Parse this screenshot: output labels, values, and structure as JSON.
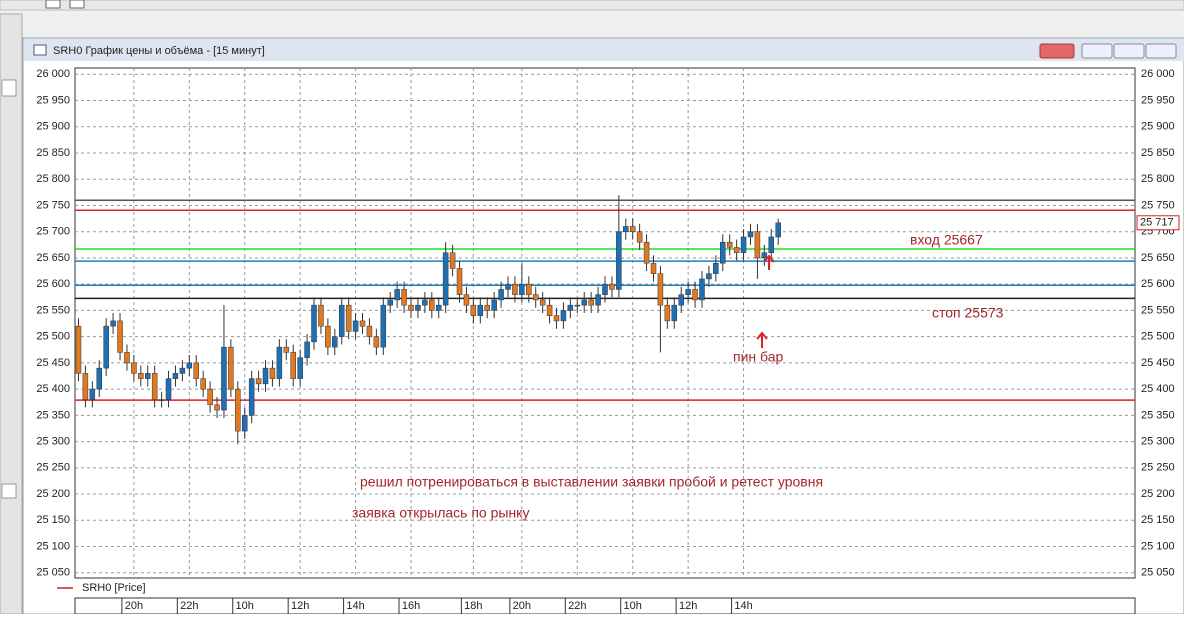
{
  "window": {
    "title": "SRH0 График цены и объёма - [15 минут]"
  },
  "chart_data": {
    "type": "candlestick",
    "series": [
      {
        "name": "SRH0 [Price]",
        "color": "#d42020",
        "up_color": "#1f6fb5",
        "down_color": "#e07a22",
        "open": [
          25520,
          25430,
          25380,
          25400,
          25440,
          25520,
          25530,
          25470,
          25450,
          25430,
          25420,
          25430,
          25380,
          25380,
          25420,
          25430,
          25440,
          25450,
          25420,
          25400,
          25370,
          25360,
          25480,
          25400,
          25320,
          25350,
          25420,
          25410,
          25440,
          25420,
          25480,
          25470,
          25420,
          25460,
          25490,
          25560,
          25520,
          25480,
          25500,
          25560,
          25510,
          25530,
          25520,
          25500,
          25480,
          25560,
          25570,
          25590,
          25560,
          25550,
          25560,
          25570,
          25550,
          25560,
          25660,
          25630,
          25580,
          25560,
          25540,
          25560,
          25550,
          25570,
          25590,
          25600,
          25580,
          25600,
          25580,
          25570,
          25560,
          25540,
          25530,
          25550,
          25560,
          25560,
          25570,
          25560,
          25580,
          25600,
          25590,
          25700,
          25710,
          25700,
          25680,
          25640,
          25620,
          25560,
          25530,
          25560,
          25580,
          25590,
          25570,
          25610,
          25620,
          25640,
          25680,
          25670,
          25660,
          25690,
          25700,
          25650,
          25660,
          25690
        ],
        "high": [
          25535,
          25445,
          25415,
          25455,
          25535,
          25545,
          25545,
          25485,
          25465,
          25445,
          25445,
          25445,
          25395,
          25435,
          25445,
          25455,
          25465,
          25465,
          25435,
          25415,
          25385,
          25560,
          25495,
          25415,
          25365,
          25435,
          25435,
          25455,
          25455,
          25495,
          25495,
          25485,
          25475,
          25505,
          25575,
          25575,
          25535,
          25515,
          25575,
          25575,
          25545,
          25545,
          25535,
          25515,
          25575,
          25585,
          25605,
          25605,
          25575,
          25575,
          25585,
          25585,
          25575,
          25680,
          25675,
          25645,
          25595,
          25575,
          25575,
          25575,
          25585,
          25605,
          25615,
          25615,
          25640,
          25615,
          25595,
          25585,
          25575,
          25555,
          25565,
          25575,
          25575,
          25585,
          25585,
          25595,
          25615,
          25615,
          25770,
          25725,
          25725,
          25715,
          25695,
          25655,
          25635,
          25575,
          25575,
          25595,
          25605,
          25605,
          25625,
          25635,
          25655,
          25695,
          25695,
          25685,
          25705,
          25715,
          25715,
          25675,
          25705,
          25725
        ],
        "low": [
          25415,
          25365,
          25365,
          25385,
          25425,
          25505,
          25455,
          25435,
          25415,
          25405,
          25405,
          25365,
          25365,
          25365,
          25405,
          25415,
          25425,
          25405,
          25385,
          25355,
          25345,
          25345,
          25385,
          25295,
          25305,
          25335,
          25395,
          25395,
          25405,
          25405,
          25455,
          25405,
          25405,
          25445,
          25475,
          25505,
          25465,
          25465,
          25485,
          25495,
          25495,
          25505,
          25485,
          25465,
          25465,
          25545,
          25555,
          25545,
          25535,
          25535,
          25545,
          25535,
          25535,
          25545,
          25615,
          25565,
          25545,
          25525,
          25525,
          25535,
          25535,
          25555,
          25575,
          25565,
          25565,
          25565,
          25555,
          25545,
          25525,
          25515,
          25515,
          25535,
          25545,
          25545,
          25545,
          25545,
          25565,
          25575,
          25575,
          25685,
          25685,
          25665,
          25625,
          25605,
          25470,
          25515,
          25515,
          25545,
          25565,
          25555,
          25555,
          25595,
          25605,
          25625,
          25655,
          25645,
          25645,
          25675,
          25610,
          25635,
          25645,
          25675
        ],
        "close": [
          25430,
          25380,
          25400,
          25440,
          25520,
          25530,
          25470,
          25450,
          25430,
          25420,
          25430,
          25380,
          25380,
          25420,
          25430,
          25440,
          25450,
          25420,
          25400,
          25370,
          25360,
          25480,
          25400,
          25320,
          25350,
          25420,
          25410,
          25440,
          25420,
          25480,
          25470,
          25420,
          25460,
          25490,
          25560,
          25520,
          25480,
          25500,
          25560,
          25510,
          25530,
          25520,
          25500,
          25480,
          25560,
          25570,
          25590,
          25560,
          25550,
          25560,
          25570,
          25550,
          25560,
          25660,
          25630,
          25580,
          25560,
          25540,
          25560,
          25550,
          25570,
          25590,
          25600,
          25580,
          25600,
          25580,
          25570,
          25560,
          25540,
          25530,
          25550,
          25560,
          25560,
          25570,
          25560,
          25580,
          25600,
          25590,
          25700,
          25710,
          25700,
          25680,
          25640,
          25620,
          25560,
          25530,
          25560,
          25580,
          25590,
          25570,
          25610,
          25620,
          25640,
          25680,
          25670,
          25660,
          25690,
          25700,
          25650,
          25660,
          25690,
          25717
        ]
      }
    ],
    "xlim": [
      -0.5,
      152.5
    ],
    "xticks": [
      {
        "value": 8,
        "label": "20h"
      },
      {
        "value": 16,
        "label": "22h"
      },
      {
        "value": 24,
        "label": "10h"
      },
      {
        "value": 32,
        "label": "12h"
      },
      {
        "value": 40,
        "label": "14h"
      },
      {
        "value": 48,
        "label": "16h"
      },
      {
        "value": 57,
        "label": "18h"
      },
      {
        "value": 64,
        "label": "20h"
      },
      {
        "value": 72,
        "label": "22h"
      },
      {
        "value": 80,
        "label": "10h"
      },
      {
        "value": 88,
        "label": "12h"
      },
      {
        "value": 96,
        "label": "14h"
      }
    ],
    "ylim": [
      25040,
      26012
    ],
    "yticks": [
      {
        "value": 26000,
        "label": "26 000"
      },
      {
        "value": 25950,
        "label": "25 950"
      },
      {
        "value": 25900,
        "label": "25 900"
      },
      {
        "value": 25850,
        "label": "25 850"
      },
      {
        "value": 25800,
        "label": "25 800"
      },
      {
        "value": 25750,
        "label": "25 750"
      },
      {
        "value": 25700,
        "label": "25 700"
      },
      {
        "value": 25650,
        "label": "25 650"
      },
      {
        "value": 25600,
        "label": "25 600"
      },
      {
        "value": 25550,
        "label": "25 550"
      },
      {
        "value": 25500,
        "label": "25 500"
      },
      {
        "value": 25450,
        "label": "25 450"
      },
      {
        "value": 25400,
        "label": "25 400"
      },
      {
        "value": 25350,
        "label": "25 350"
      },
      {
        "value": 25300,
        "label": "25 300"
      },
      {
        "value": 25250,
        "label": "25 250"
      },
      {
        "value": 25200,
        "label": "25 200"
      },
      {
        "value": 25150,
        "label": "25 150"
      },
      {
        "value": 25100,
        "label": "25 100"
      },
      {
        "value": 25050,
        "label": "25 050"
      }
    ],
    "grid": true,
    "levels": [
      {
        "value": 25760,
        "color": "#555555"
      },
      {
        "value": 25741,
        "color": "#e02020"
      },
      {
        "value": 25667,
        "color": "#22dd22"
      },
      {
        "value": 25644,
        "color": "#1a7fc0"
      },
      {
        "value": 25598,
        "color": "#1a7fc0"
      },
      {
        "value": 25573,
        "color": "#222222"
      },
      {
        "value": 25379,
        "color": "#e02020"
      }
    ],
    "last_price": 25717,
    "last_price_label": "25 717",
    "annotations": [
      "вход 25667",
      "стоп 25573",
      "пин бар",
      "решил потренироваться в выставлении заявки пробой и ретест уровня",
      "заявка открылась по рынку"
    ]
  }
}
